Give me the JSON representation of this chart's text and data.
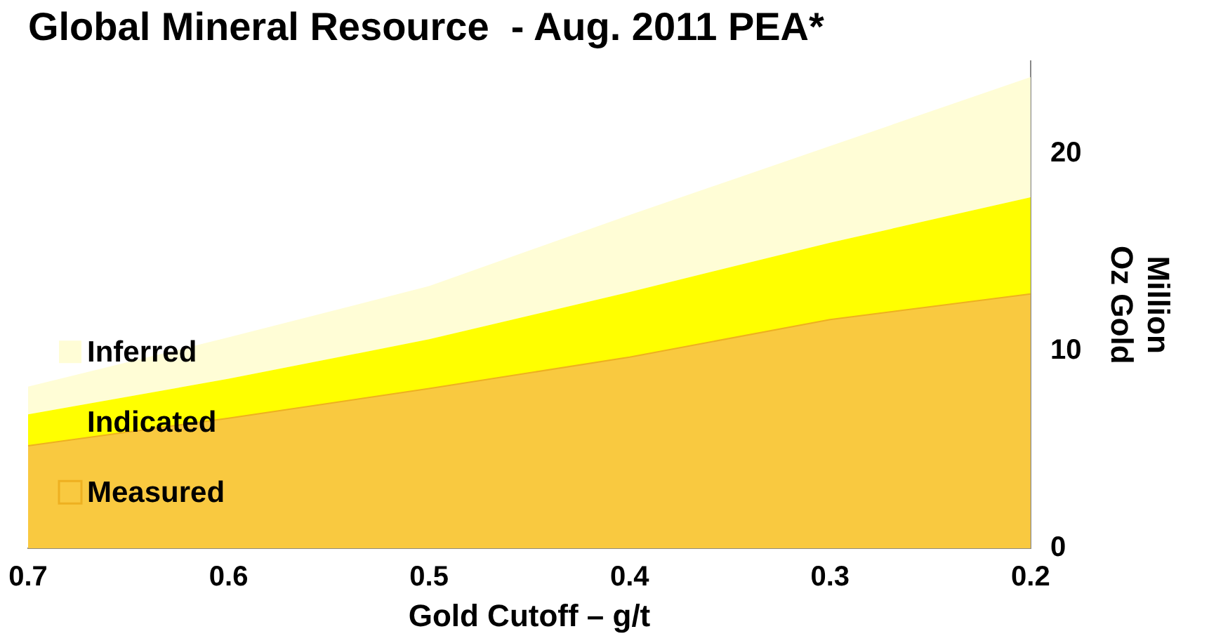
{
  "chart_data": {
    "type": "area",
    "title": "Global Mineral Resource  - Aug. 2011 PEA*",
    "xlabel": "Gold Cutoff – g/t",
    "y2label": "Million Oz Gold",
    "x": [
      0.7,
      0.6,
      0.5,
      0.4,
      0.3,
      0.2
    ],
    "stacked": true,
    "legend": "left",
    "series": [
      {
        "name": "Measured",
        "color": "#f9c940",
        "axis": "y2",
        "values": [
          5.2,
          6.6,
          8.1,
          9.7,
          11.6,
          12.9
        ]
      },
      {
        "name": "Indicated",
        "color": "#ffff00",
        "axis": "y2",
        "values": [
          1.6,
          2.0,
          2.5,
          3.3,
          3.9,
          4.9
        ]
      },
      {
        "name": "Inferred",
        "color": "#fffdd6",
        "axis": "y2",
        "values": [
          1.4,
          2.1,
          2.7,
          3.9,
          4.9,
          6.1
        ]
      }
    ],
    "xlim": [
      0.7,
      0.2
    ],
    "xticks": [
      0.7,
      0.6,
      0.5,
      0.4,
      0.3,
      0.2
    ],
    "y2lim": [
      0,
      24.7
    ],
    "y2ticks": [
      0,
      10,
      20
    ],
    "grid": false
  }
}
